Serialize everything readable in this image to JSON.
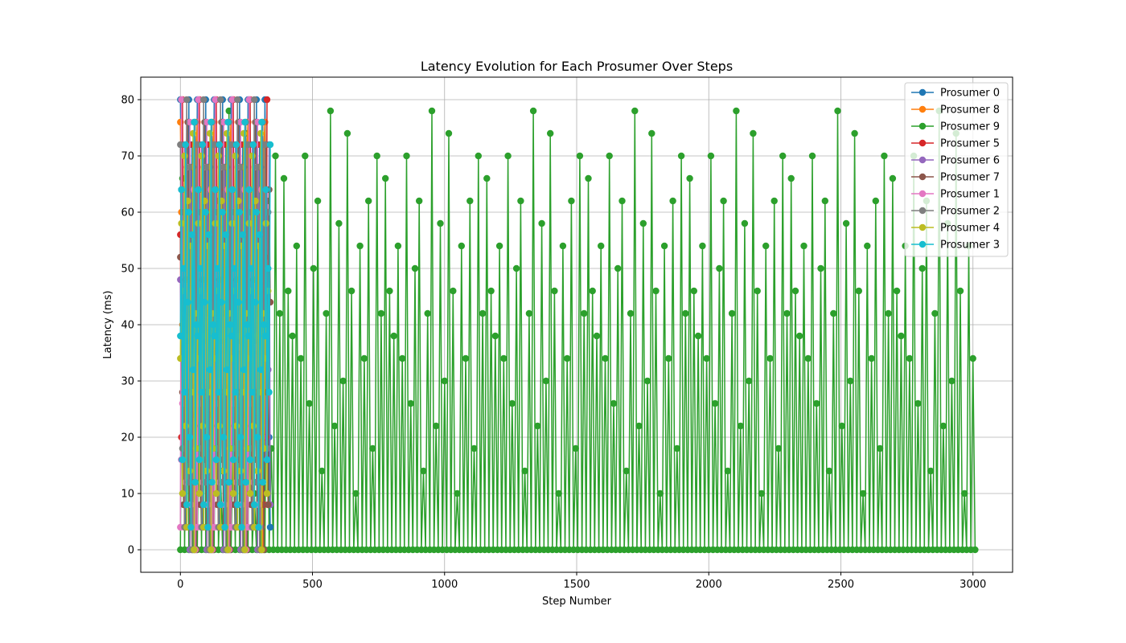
{
  "chart_data": {
    "type": "line",
    "title": "Latency Evolution for Each Prosumer Over Steps",
    "xlabel": "Step Number",
    "ylabel": "Latency (ms)",
    "xlim": [
      -150,
      3150
    ],
    "ylim": [
      -4,
      84
    ],
    "xticks": [
      0,
      500,
      1000,
      1500,
      2000,
      2500,
      3000
    ],
    "yticks": [
      0,
      10,
      20,
      30,
      40,
      50,
      60,
      70,
      80
    ],
    "grid": true,
    "legend_position": "top-right",
    "marker": "circle",
    "series": [
      {
        "name": "Prosumer 0",
        "color": "#1f77b4",
        "x_start": 0,
        "x_end": 340,
        "step": 4,
        "pattern": [
          80,
          64,
          48,
          32,
          20,
          4,
          56,
          40,
          80,
          12,
          36,
          72,
          24,
          0,
          60,
          44
        ]
      },
      {
        "name": "Prosumer 8",
        "color": "#ff7f0e",
        "x_start": 0,
        "x_end": 330,
        "step": 4,
        "pattern": [
          76,
          60,
          40,
          28,
          16,
          8,
          52,
          68,
          36,
          12,
          44,
          24,
          64,
          4,
          0,
          72
        ]
      },
      {
        "name": "Prosumer 9",
        "color": "#2ca02c",
        "x_start": 0,
        "x_end": 3010,
        "step": 8,
        "pattern": [
          0,
          66,
          0,
          46,
          0,
          38,
          0,
          54,
          0,
          34,
          0,
          70,
          0,
          26,
          0,
          50,
          0,
          62,
          0,
          14,
          0,
          42,
          0,
          78,
          0,
          22,
          0,
          58,
          0,
          30,
          0,
          74,
          0,
          46,
          0,
          10,
          0,
          54,
          0,
          34,
          0,
          62,
          0,
          18,
          0,
          70,
          0,
          42
        ]
      },
      {
        "name": "Prosumer 5",
        "color": "#d62728",
        "x_start": 0,
        "x_end": 330,
        "step": 4,
        "pattern": [
          56,
          20,
          80,
          40,
          4,
          64,
          28,
          48,
          12,
          72,
          36,
          0,
          60,
          24,
          44,
          8
        ]
      },
      {
        "name": "Prosumer 6",
        "color": "#9467bd",
        "x_start": 0,
        "x_end": 340,
        "step": 4,
        "pattern": [
          48,
          16,
          64,
          32,
          72,
          8,
          40,
          56,
          24,
          0,
          68,
          36,
          4,
          52,
          20,
          60
        ]
      },
      {
        "name": "Prosumer 7",
        "color": "#8c564b",
        "x_start": 0,
        "x_end": 340,
        "step": 4,
        "pattern": [
          52,
          72,
          28,
          8,
          64,
          44,
          16,
          76,
          36,
          4,
          56,
          24,
          68,
          12,
          40,
          0
        ]
      },
      {
        "name": "Prosumer 1",
        "color": "#e377c2",
        "x_start": 0,
        "x_end": 310,
        "step": 4,
        "pattern": [
          4,
          80,
          26,
          60,
          44,
          12,
          68,
          36,
          20,
          76,
          8,
          52,
          30,
          64,
          0,
          40
        ]
      },
      {
        "name": "Prosumer 2",
        "color": "#7f7f7f",
        "x_start": 0,
        "x_end": 335,
        "step": 4,
        "pattern": [
          72,
          38,
          18,
          60,
          4,
          48,
          80,
          28,
          12,
          68,
          42,
          0,
          56,
          22,
          76,
          34
        ]
      },
      {
        "name": "Prosumer 4",
        "color": "#bcbd22",
        "x_start": 0,
        "x_end": 335,
        "step": 4,
        "pattern": [
          34,
          58,
          10,
          46,
          70,
          22,
          4,
          62,
          38,
          14,
          54,
          28,
          74,
          0,
          42,
          18
        ]
      },
      {
        "name": "Prosumer 3",
        "color": "#17becf",
        "x_start": 0,
        "x_end": 340,
        "step": 4,
        "pattern": [
          38,
          64,
          16,
          50,
          28,
          72,
          8,
          44,
          60,
          20,
          4,
          56,
          32,
          76,
          12,
          40
        ]
      }
    ]
  }
}
